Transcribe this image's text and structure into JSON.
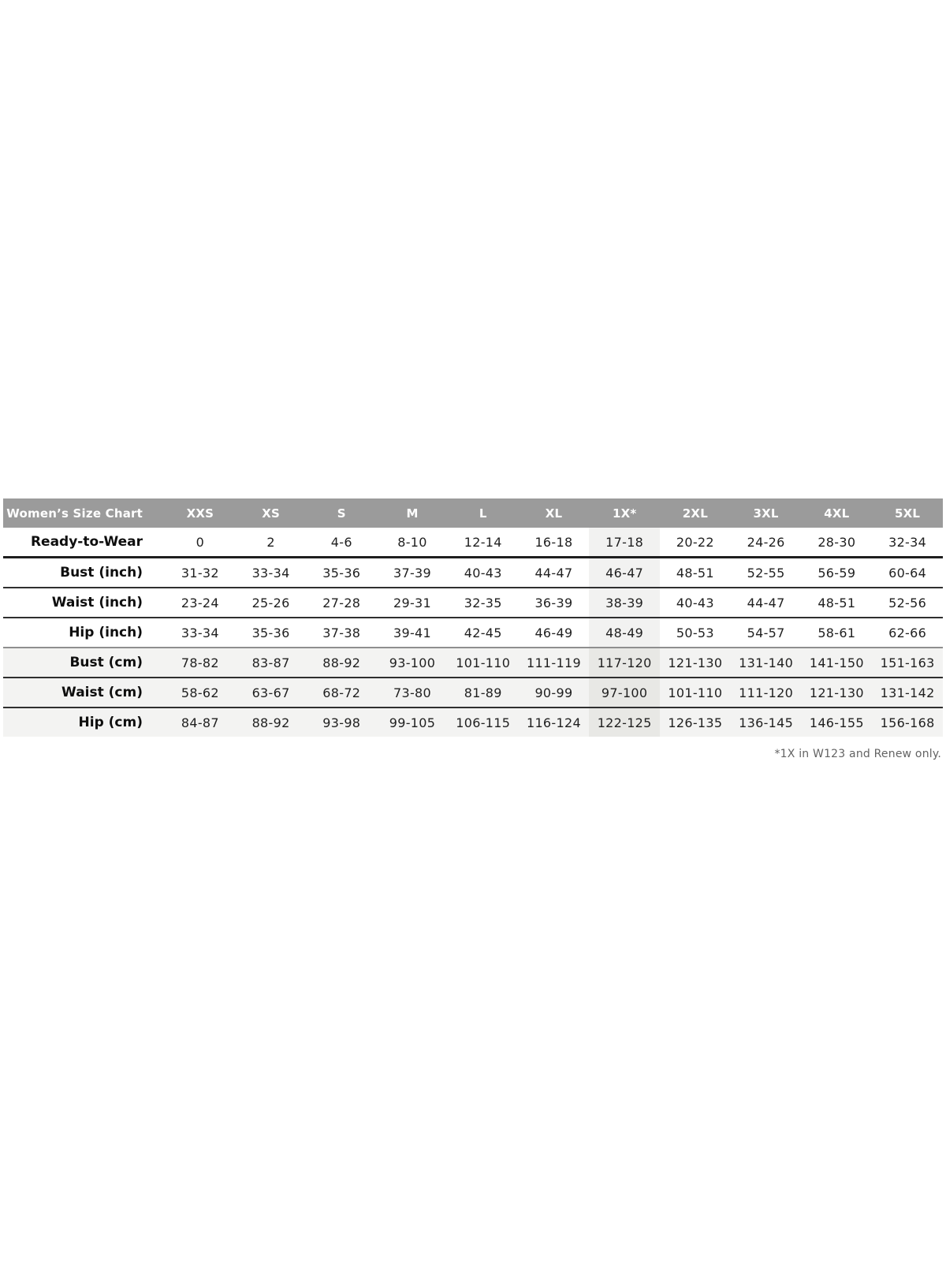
{
  "table": {
    "header": {
      "label": "Women’s Size Chart",
      "sizes": [
        "XXS",
        "XS",
        "S",
        "M",
        "L",
        "XL",
        "1X*",
        "2XL",
        "3XL",
        "4XL",
        "5XL"
      ]
    },
    "highlighted_column": "1X*",
    "highlighted_column_index": 6,
    "rows": [
      {
        "label": "Ready-to-Wear",
        "values": [
          "0",
          "2",
          "4-6",
          "8-10",
          "12-14",
          "16-18",
          "17-18",
          "20-22",
          "24-26",
          "28-30",
          "32-34"
        ]
      },
      {
        "label": "Bust (inch)",
        "values": [
          "31-32",
          "33-34",
          "35-36",
          "37-39",
          "40-43",
          "44-47",
          "46-47",
          "48-51",
          "52-55",
          "56-59",
          "60-64"
        ]
      },
      {
        "label": "Waist (inch)",
        "values": [
          "23-24",
          "25-26",
          "27-28",
          "29-31",
          "32-35",
          "36-39",
          "38-39",
          "40-43",
          "44-47",
          "48-51",
          "52-56"
        ]
      },
      {
        "label": "Hip (inch)",
        "values": [
          "33-34",
          "35-36",
          "37-38",
          "39-41",
          "42-45",
          "46-49",
          "48-49",
          "50-53",
          "54-57",
          "58-61",
          "62-66"
        ]
      },
      {
        "label": "Bust (cm)",
        "values": [
          "78-82",
          "83-87",
          "88-92",
          "93-100",
          "101-110",
          "111-119",
          "117-120",
          "121-130",
          "131-140",
          "141-150",
          "151-163"
        ]
      },
      {
        "label": "Waist (cm)",
        "values": [
          "58-62",
          "63-67",
          "68-72",
          "73-80",
          "81-89",
          "90-99",
          "97-100",
          "101-110",
          "111-120",
          "121-130",
          "131-142"
        ]
      },
      {
        "label": "Hip (cm)",
        "values": [
          "84-87",
          "88-92",
          "93-98",
          "99-105",
          "106-115",
          "116-124",
          "122-125",
          "126-135",
          "136-145",
          "146-155",
          "156-168"
        ]
      }
    ],
    "footnote": "*1X in W123 and Renew only."
  },
  "colors": {
    "header_bg": "#9b9b9b",
    "header_text": "#ffffff",
    "row_alt_bg": "#f3f3f2",
    "highlight_bg_on_white": "#f2f2f1",
    "highlight_bg_on_gray": "#e8e8e5",
    "separator": "#2f2f2f",
    "footnote_text": "#636363"
  }
}
